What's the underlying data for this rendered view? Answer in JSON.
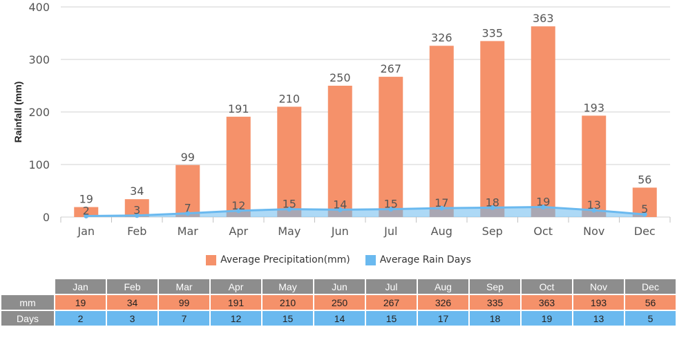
{
  "chart_data": {
    "type": "bar+line",
    "categories": [
      "Jan",
      "Feb",
      "Mar",
      "Apr",
      "May",
      "Jun",
      "Jul",
      "Aug",
      "Sep",
      "Oct",
      "Nov",
      "Dec"
    ],
    "series": [
      {
        "name": "Average Precipitation(mm)",
        "type": "bar",
        "color": "#f5916a",
        "values": [
          19,
          34,
          99,
          191,
          210,
          250,
          267,
          326,
          335,
          363,
          193,
          56
        ]
      },
      {
        "name": "Average Rain Days",
        "type": "area-line",
        "color": "#6ab9ef",
        "values": [
          2,
          3,
          7,
          12,
          15,
          14,
          15,
          17,
          18,
          19,
          13,
          5
        ]
      }
    ],
    "ylabel": "Rainfall (mm)",
    "ylim": [
      0,
      400
    ],
    "yticks": [
      0,
      100,
      200,
      300,
      400
    ],
    "grid": true,
    "legend_position": "bottom"
  },
  "table": {
    "row_mm_label": "mm",
    "row_days_label": "Days"
  }
}
